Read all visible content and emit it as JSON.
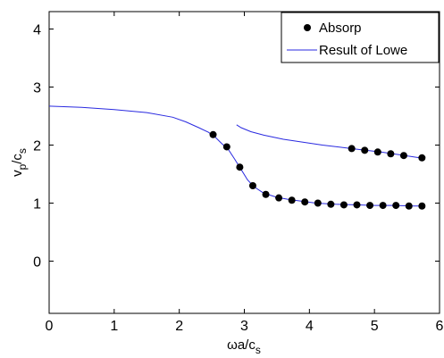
{
  "chart_data": {
    "type": "scatter",
    "xlabel": "ωa/c",
    "xlabel_sub": "s",
    "ylabel_parts": [
      "v",
      "p",
      "/c",
      "s"
    ],
    "xlim": [
      0,
      6
    ],
    "ylim": [
      -0.9,
      4.3
    ],
    "xticks": [
      0,
      1,
      2,
      3,
      4,
      5,
      6
    ],
    "yticks": [
      0,
      1,
      2,
      3,
      4
    ],
    "grid": false,
    "legend_position": "top-right",
    "series": [
      {
        "name": "Absorp",
        "kind": "markers",
        "color": "#000000",
        "points": [
          [
            2.52,
            2.18
          ],
          [
            2.73,
            1.97
          ],
          [
            2.93,
            1.62
          ],
          [
            3.13,
            1.3
          ],
          [
            3.33,
            1.15
          ],
          [
            3.53,
            1.09
          ],
          [
            3.73,
            1.05
          ],
          [
            3.93,
            1.02
          ],
          [
            4.13,
            1.0
          ],
          [
            4.33,
            0.98
          ],
          [
            4.53,
            0.97
          ],
          [
            4.73,
            0.97
          ],
          [
            4.93,
            0.96
          ],
          [
            5.13,
            0.96
          ],
          [
            5.33,
            0.96
          ],
          [
            5.53,
            0.95
          ],
          [
            5.73,
            0.95
          ],
          [
            4.65,
            1.94
          ],
          [
            4.85,
            1.91
          ],
          [
            5.05,
            1.88
          ],
          [
            5.25,
            1.85
          ],
          [
            5.45,
            1.82
          ],
          [
            5.73,
            1.78
          ]
        ]
      },
      {
        "name": "Result of Lowe",
        "kind": "lines",
        "color": "#2a2ae0",
        "segments": [
          [
            [
              0,
              2.67
            ],
            [
              0.5,
              2.65
            ],
            [
              1.0,
              2.61
            ],
            [
              1.5,
              2.56
            ],
            [
              1.9,
              2.48
            ],
            [
              2.1,
              2.4
            ],
            [
              2.3,
              2.3
            ],
            [
              2.45,
              2.22
            ],
            [
              2.55,
              2.14
            ],
            [
              2.65,
              2.03
            ],
            [
              2.75,
              1.93
            ],
            [
              2.85,
              1.76
            ],
            [
              2.95,
              1.58
            ],
            [
              3.05,
              1.4
            ],
            [
              3.15,
              1.28
            ],
            [
              3.3,
              1.17
            ],
            [
              3.5,
              1.1
            ],
            [
              3.7,
              1.06
            ],
            [
              3.9,
              1.03
            ],
            [
              4.1,
              1.0
            ],
            [
              4.4,
              0.98
            ],
            [
              4.7,
              0.97
            ],
            [
              5.0,
              0.96
            ],
            [
              5.3,
              0.96
            ],
            [
              5.6,
              0.95
            ],
            [
              5.75,
              0.95
            ]
          ],
          [
            [
              2.88,
              2.35
            ],
            [
              2.95,
              2.3
            ],
            [
              3.1,
              2.23
            ],
            [
              3.3,
              2.17
            ],
            [
              3.6,
              2.1
            ],
            [
              3.9,
              2.05
            ],
            [
              4.2,
              2.0
            ],
            [
              4.5,
              1.96
            ],
            [
              4.8,
              1.92
            ],
            [
              5.1,
              1.88
            ],
            [
              5.4,
              1.83
            ],
            [
              5.75,
              1.77
            ]
          ]
        ]
      }
    ]
  }
}
